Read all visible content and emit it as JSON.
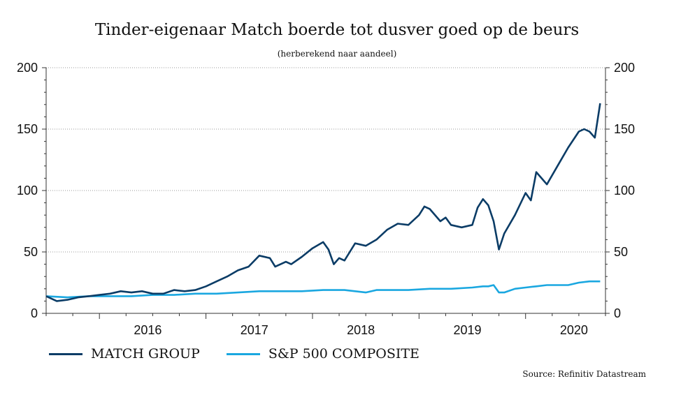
{
  "chart_data": {
    "type": "line",
    "title": "Tinder-eigenaar Match boerde tot dusver goed op de beurs",
    "subtitle": "(herberekend naar aandeel)",
    "source": "Source: Refinitiv Datastream",
    "ylim": [
      0,
      200
    ],
    "yticks": [
      0,
      50,
      100,
      150,
      200
    ],
    "xlim": [
      2015.5,
      2020.75
    ],
    "xticks": [
      "2016",
      "2017",
      "2018",
      "2019",
      "2020"
    ],
    "grid": true,
    "legend_position": "bottom-left",
    "series": [
      {
        "name": "MATCH GROUP",
        "color": "#0b3c66",
        "x": [
          2015.5,
          2015.6,
          2015.7,
          2015.8,
          2015.9,
          2016.0,
          2016.1,
          2016.2,
          2016.3,
          2016.4,
          2016.5,
          2016.6,
          2016.7,
          2016.8,
          2016.9,
          2017.0,
          2017.1,
          2017.2,
          2017.3,
          2017.4,
          2017.5,
          2017.6,
          2017.65,
          2017.75,
          2017.8,
          2017.9,
          2018.0,
          2018.1,
          2018.15,
          2018.2,
          2018.25,
          2018.3,
          2018.35,
          2018.4,
          2018.5,
          2018.6,
          2018.7,
          2018.8,
          2018.9,
          2019.0,
          2019.05,
          2019.1,
          2019.2,
          2019.25,
          2019.3,
          2019.4,
          2019.5,
          2019.55,
          2019.6,
          2019.65,
          2019.7,
          2019.75,
          2019.8,
          2019.9,
          2020.0,
          2020.05,
          2020.1,
          2020.15,
          2020.2,
          2020.3,
          2020.4,
          2020.5,
          2020.55,
          2020.6,
          2020.65,
          2020.7
        ],
        "values": [
          14,
          10,
          11,
          13,
          14,
          15,
          16,
          18,
          17,
          18,
          16,
          16,
          19,
          18,
          19,
          22,
          26,
          30,
          35,
          38,
          47,
          45,
          38,
          42,
          40,
          46,
          53,
          58,
          52,
          40,
          45,
          43,
          50,
          57,
          55,
          60,
          68,
          73,
          72,
          80,
          87,
          85,
          75,
          78,
          72,
          70,
          72,
          86,
          93,
          88,
          75,
          52,
          65,
          80,
          98,
          92,
          115,
          110,
          105,
          120,
          135,
          148,
          150,
          148,
          143,
          171
        ]
      },
      {
        "name": "S&P 500 COMPOSITE",
        "color": "#1aa7e0",
        "x": [
          2015.5,
          2015.7,
          2015.9,
          2016.1,
          2016.3,
          2016.5,
          2016.7,
          2016.9,
          2017.1,
          2017.3,
          2017.5,
          2017.7,
          2017.9,
          2018.1,
          2018.2,
          2018.3,
          2018.4,
          2018.5,
          2018.6,
          2018.7,
          2018.9,
          2019.1,
          2019.3,
          2019.5,
          2019.6,
          2019.65,
          2019.7,
          2019.75,
          2019.8,
          2019.9,
          2020.0,
          2020.1,
          2020.2,
          2020.3,
          2020.4,
          2020.5,
          2020.6,
          2020.7
        ],
        "values": [
          14,
          13,
          14,
          14,
          14,
          15,
          15,
          16,
          16,
          17,
          18,
          18,
          18,
          19,
          19,
          19,
          18,
          17,
          19,
          19,
          19,
          20,
          20,
          21,
          22,
          22,
          23,
          17,
          17,
          20,
          21,
          22,
          23,
          23,
          23,
          25,
          26,
          26
        ]
      }
    ]
  }
}
